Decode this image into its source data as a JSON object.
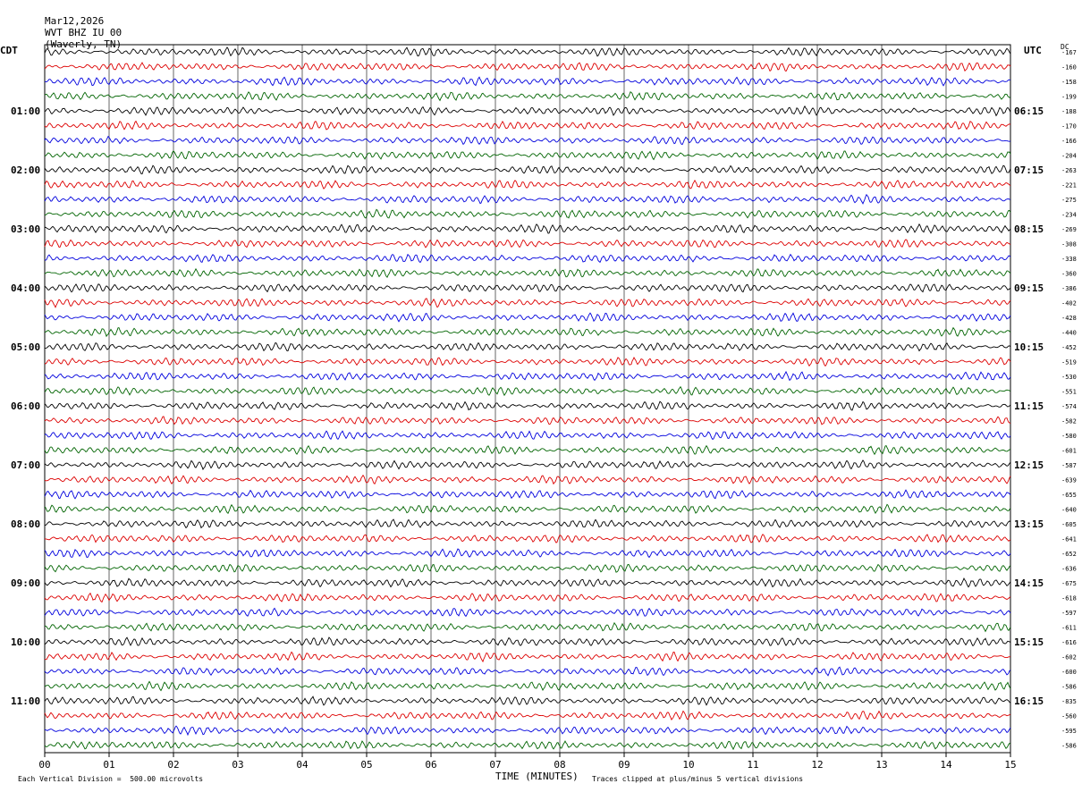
{
  "header": {
    "date": "Mar12,2026",
    "station": "WVT BHZ IU 00",
    "location": "(Waverly, TN)"
  },
  "left_axis_title": "CDT",
  "right_axis_title": "UTC",
  "dc_label": "DC",
  "footer": {
    "scale_note": "Each Vertical Division =  500.00 microvolts",
    "x_title": "TIME (MINUTES)",
    "clip_note": "Traces clipped at plus/minus 5 vertical divisions"
  },
  "colors": {
    "trace_cycle": [
      "#000000",
      "#dd0000",
      "#0000dd",
      "#006400"
    ],
    "grid": "#000000"
  },
  "chart_data": {
    "type": "line",
    "description_kind": "helicorder",
    "x_ticks": [
      "00",
      "01",
      "02",
      "03",
      "04",
      "05",
      "06",
      "07",
      "08",
      "09",
      "10",
      "11",
      "12",
      "13",
      "14",
      "15"
    ],
    "xlim": [
      0,
      15
    ],
    "rows": 48,
    "minutes_per_row": 15,
    "left_hour_labels": [
      "01:00",
      "02:00",
      "03:00",
      "04:00",
      "05:00",
      "06:00",
      "07:00",
      "08:00",
      "09:00",
      "10:00",
      "11:00"
    ],
    "right_hour_labels": [
      "06:15",
      "07:15",
      "08:15",
      "09:15",
      "10:15",
      "11:15",
      "12:15",
      "13:15",
      "14:15",
      "15:15",
      "16:15"
    ],
    "dc_offsets": [
      "-167",
      "-160",
      "-158",
      "-199",
      "-188",
      "-170",
      "-166",
      "-204",
      "-263",
      "-221",
      "-275",
      "-234",
      "-269",
      "-308",
      "-338",
      "-360",
      "-386",
      "-402",
      "-428",
      "-440",
      "-452",
      "-519",
      "-530",
      "-551",
      "-574",
      "-582",
      "-580",
      "-601",
      "-587",
      "-639",
      "-655",
      "-640",
      "-605",
      "-641",
      "-652",
      "-636",
      "-675",
      "-618",
      "-597",
      "-611",
      "-616",
      "-602",
      "-600",
      "-586",
      "-835",
      "-560",
      "-595",
      "-586"
    ]
  }
}
